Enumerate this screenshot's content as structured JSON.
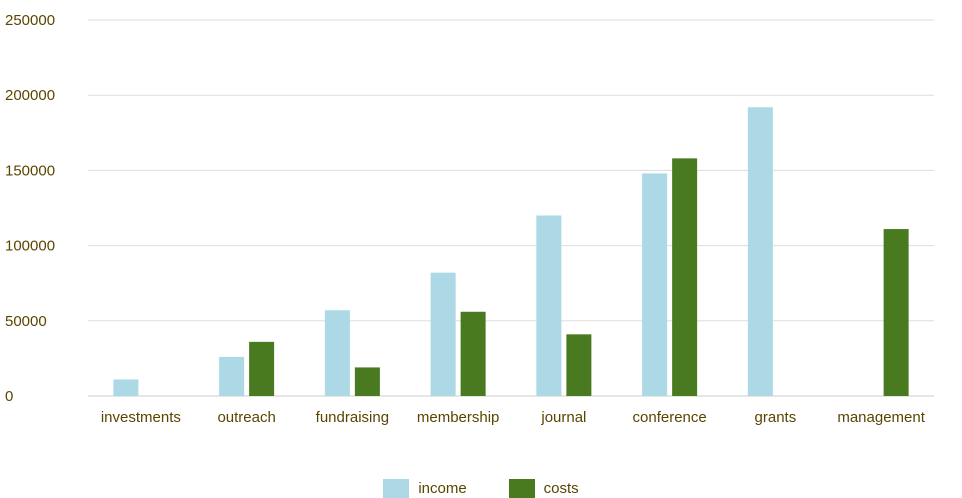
{
  "chart_data": {
    "type": "bar",
    "categories": [
      "investments",
      "outreach",
      "fundraising",
      "membership",
      "journal",
      "conference",
      "grants",
      "management"
    ],
    "series": [
      {
        "name": "income",
        "color": "#add8e6",
        "values": [
          11000,
          26000,
          57000,
          82000,
          120000,
          148000,
          192000,
          0
        ]
      },
      {
        "name": "costs",
        "color": "#4a7a20",
        "values": [
          0,
          36000,
          19000,
          56000,
          41000,
          158000,
          0,
          111000
        ]
      }
    ],
    "ylim": [
      0,
      250000
    ],
    "yticks": [
      "0",
      "50000",
      "100000",
      "150000",
      "200000",
      "250000"
    ],
    "grid": true,
    "legend": "bottom"
  }
}
